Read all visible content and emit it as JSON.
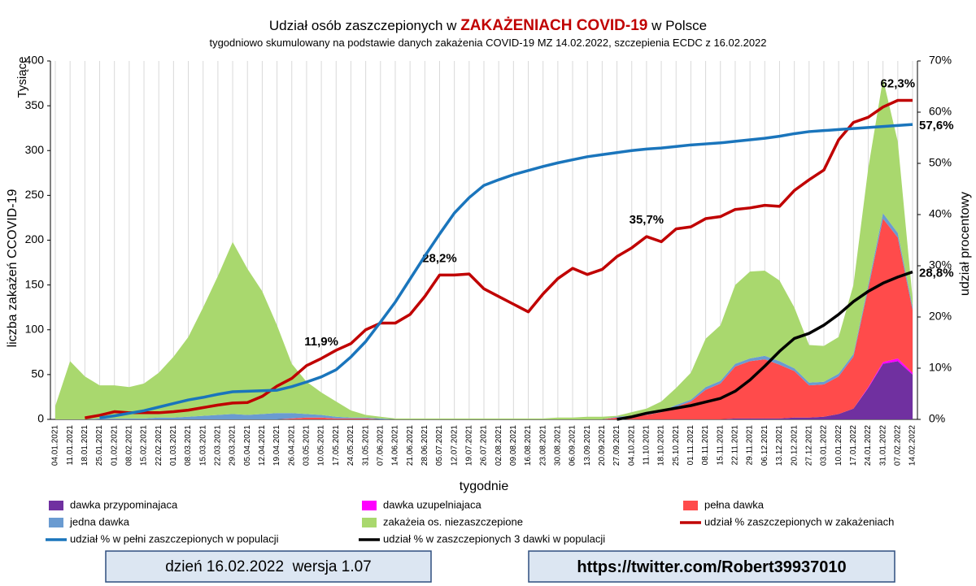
{
  "chart_data": {
    "type": "area",
    "title": [
      "Udział osób zaszczepionych w",
      "ZAKAŻENIACH COVID-19",
      "w Polsce"
    ],
    "subtitle": "tygodniowo skumulowany na podstawie danych zakażenia COVID-19 MZ 14.02.2022, szczepienia ECDC z 16.02.2022",
    "y_unit": "Tysiące",
    "y_label": "liczba zakażeń CCOVID-19",
    "y2_label": "udział procentowy",
    "x_label": "tygodnie",
    "categories": [
      "04.01.2021",
      "11.01.2021",
      "18.01.2021",
      "25.01.2021",
      "01.02.2021",
      "08.02.2021",
      "15.02.2021",
      "22.02.2021",
      "01.03.2021",
      "08.03.2021",
      "15.03.2021",
      "22.03.2021",
      "29.03.2021",
      "05.04.2021",
      "12.04.2021",
      "19.04.2021",
      "26.04.2021",
      "03.05.2021",
      "10.05.2021",
      "17.05.2021",
      "24.05.2021",
      "31.05.2021",
      "07.06.2021",
      "14.06.2021",
      "21.06.2021",
      "28.06.2021",
      "05.07.2021",
      "12.07.2021",
      "19.07.2021",
      "26.07.2021",
      "02.08.2021",
      "09.08.2021",
      "16.08.2021",
      "23.08.2021",
      "30.08.2021",
      "06.09.2021",
      "13.09.2021",
      "20.09.2021",
      "27.09.2021",
      "04.10.2021",
      "11.10.2021",
      "18.10.2021",
      "25.10.2021",
      "01.11.2021",
      "08.11.2021",
      "15.11.2021",
      "22.11.2021",
      "29.11.2021",
      "06.12.2021",
      "13.12.2021",
      "20.12.2021",
      "27.12.2021",
      "03.01.2022",
      "10.01.2022",
      "17.01.2022",
      "24.01.2022",
      "31.01.2022",
      "07.02.2022",
      "14.02.2022"
    ],
    "ylim": [
      0,
      400
    ],
    "yticks": [
      0,
      50,
      100,
      150,
      200,
      250,
      300,
      350,
      400
    ],
    "y2lim": [
      0,
      70
    ],
    "y2ticks": [
      {
        "value": 0,
        "label": "0%"
      },
      {
        "value": 10,
        "label": "10%"
      },
      {
        "value": 20,
        "label": "20%"
      },
      {
        "value": 30,
        "label": "30%"
      },
      {
        "value": 40,
        "label": "40%"
      },
      {
        "value": 50,
        "label": "50%"
      },
      {
        "value": 60,
        "label": "60%"
      },
      {
        "value": 70,
        "label": "70%"
      }
    ],
    "grid": "x",
    "series": [
      {
        "name": "dawka przypominajaca",
        "type": "area",
        "color": "#7030a0",
        "values": [
          0,
          0,
          0,
          0,
          0,
          0,
          0,
          0,
          0,
          0,
          0,
          0,
          0,
          0,
          0,
          0,
          0,
          0,
          0,
          0,
          0,
          0,
          0,
          0,
          0,
          0,
          0,
          0,
          0,
          0,
          0,
          0,
          0,
          0,
          0,
          0,
          0,
          0,
          0,
          0,
          0,
          0,
          0,
          0,
          0,
          0,
          1,
          1,
          1,
          1,
          2,
          2,
          3,
          6,
          12,
          35,
          62,
          65,
          50
        ]
      },
      {
        "name": "dawka uzupelniajaca",
        "type": "area",
        "color": "#ff00ff",
        "values": [
          0,
          0,
          0,
          0,
          0,
          0,
          0,
          0,
          0,
          0,
          0,
          0,
          0,
          0,
          0,
          0,
          0,
          0,
          0,
          0,
          0,
          0,
          0,
          0,
          0,
          0,
          0,
          0,
          0,
          0,
          0,
          0,
          0,
          0,
          0,
          0,
          0,
          0,
          0,
          0,
          0,
          0,
          0,
          0,
          0,
          0,
          0,
          0,
          0,
          0,
          0,
          0,
          0,
          0,
          0,
          1,
          2,
          3,
          2
        ]
      },
      {
        "name": "pełna dawka",
        "type": "area",
        "color": "#ff4b4b",
        "values": [
          0,
          0,
          0,
          0,
          0,
          0,
          0,
          0,
          0,
          0,
          0,
          0,
          0,
          0,
          0,
          0,
          1,
          2,
          2,
          1,
          1,
          1,
          0,
          0,
          0,
          0,
          0,
          0,
          0,
          0,
          0,
          0,
          0,
          0,
          0,
          0,
          0,
          0,
          2,
          3,
          5,
          8,
          14,
          20,
          33,
          40,
          58,
          64,
          66,
          60,
          52,
          36,
          36,
          42,
          58,
          110,
          160,
          135,
          70
        ]
      },
      {
        "name": "jedna dawka",
        "type": "area",
        "color": "#6a9bd1",
        "values": [
          0,
          0,
          0,
          1,
          1,
          1,
          1,
          2,
          2,
          3,
          4,
          5,
          6,
          5,
          6,
          7,
          6,
          4,
          3,
          2,
          1,
          1,
          1,
          0,
          0,
          0,
          0,
          0,
          0,
          0,
          0,
          0,
          0,
          0,
          0,
          0,
          0,
          0,
          1,
          1,
          1,
          1,
          2,
          2,
          3,
          3,
          3,
          3,
          4,
          4,
          3,
          3,
          3,
          3,
          3,
          4,
          6,
          5,
          4
        ]
      },
      {
        "name": "zakażeia os. niezaszczepione",
        "type": "area",
        "color": "#a9d86e",
        "values": [
          15,
          65,
          48,
          37,
          37,
          35,
          39,
          50,
          68,
          89,
          121,
          155,
          192,
          163,
          137,
          98,
          55,
          36,
          25,
          17,
          8,
          3,
          2,
          1,
          1,
          1,
          1,
          1,
          1,
          1,
          1,
          1,
          1,
          1,
          2,
          2,
          3,
          3,
          1,
          4,
          6,
          11,
          19,
          30,
          54,
          62,
          88,
          97,
          95,
          90,
          68,
          42,
          40,
          41,
          77,
          130,
          150,
          102,
          9
        ]
      },
      {
        "name": "udział % zaszczepionych w zakażeniach",
        "type": "line",
        "axis": "y2",
        "color": "#c00000",
        "values": [
          null,
          null,
          0.3,
          0.8,
          1.5,
          1.3,
          1.3,
          1.3,
          1.5,
          1.8,
          2.3,
          2.8,
          3.2,
          3.3,
          4.5,
          6.5,
          8.0,
          10.5,
          11.9,
          13.5,
          14.8,
          17.5,
          18.8,
          18.8,
          20.5,
          24.0,
          28.2,
          28.2,
          28.4,
          25.5,
          24.0,
          22.5,
          21.0,
          24.5,
          27.5,
          29.5,
          28.3,
          29.3,
          31.8,
          33.5,
          35.7,
          34.7,
          37.2,
          37.6,
          39.2,
          39.6,
          41.0,
          41.3,
          41.8,
          41.6,
          44.7,
          46.8,
          48.7,
          54.6,
          58.0,
          59.0,
          61.0,
          62.3,
          62.3
        ],
        "value_labels": [
          null,
          null,
          null,
          null,
          null,
          null,
          null,
          null,
          null,
          null,
          null,
          null,
          null,
          null,
          null,
          null,
          null,
          null,
          "11,9%",
          null,
          null,
          null,
          null,
          null,
          null,
          null,
          "28,2%",
          null,
          null,
          null,
          null,
          null,
          null,
          null,
          null,
          null,
          null,
          null,
          null,
          null,
          "35,7%",
          null,
          null,
          null,
          null,
          null,
          null,
          null,
          null,
          null,
          null,
          null,
          null,
          null,
          null,
          null,
          null,
          "62,3%",
          null
        ]
      },
      {
        "name": "udział % w pełni zaszczepionych w populacji",
        "type": "line",
        "axis": "y2",
        "color": "#1a75bc",
        "values": [
          null,
          null,
          null,
          0.3,
          0.7,
          1.2,
          1.7,
          2.4,
          3.1,
          3.8,
          4.3,
          4.9,
          5.4,
          5.5,
          5.6,
          5.7,
          6.4,
          7.3,
          8.3,
          9.7,
          12.2,
          15.2,
          19.0,
          22.9,
          27.4,
          31.9,
          36.2,
          40.3,
          43.3,
          45.7,
          46.8,
          47.8,
          48.6,
          49.4,
          50.1,
          50.7,
          51.3,
          51.7,
          52.1,
          52.5,
          52.8,
          53.0,
          53.3,
          53.6,
          53.8,
          54.0,
          54.3,
          54.6,
          54.9,
          55.3,
          55.8,
          56.2,
          56.4,
          56.6,
          56.8,
          57.0,
          57.2,
          57.4,
          57.6
        ],
        "value_labels": [
          null,
          null,
          null,
          null,
          null,
          null,
          null,
          null,
          null,
          null,
          null,
          null,
          null,
          null,
          null,
          null,
          null,
          null,
          null,
          null,
          null,
          null,
          null,
          null,
          null,
          null,
          null,
          null,
          null,
          null,
          null,
          null,
          null,
          null,
          null,
          null,
          null,
          null,
          null,
          null,
          null,
          null,
          null,
          null,
          null,
          null,
          null,
          null,
          null,
          null,
          null,
          null,
          null,
          null,
          null,
          null,
          null,
          null,
          "57,6%"
        ]
      },
      {
        "name": "udział % w zaszczepionych 3 dawki w populacji",
        "type": "line",
        "axis": "y2",
        "color": "#000000",
        "values": [
          null,
          null,
          null,
          null,
          null,
          null,
          null,
          null,
          null,
          null,
          null,
          null,
          null,
          null,
          null,
          null,
          null,
          null,
          null,
          null,
          null,
          null,
          null,
          null,
          null,
          null,
          null,
          null,
          null,
          null,
          null,
          null,
          null,
          null,
          null,
          null,
          null,
          null,
          0,
          0.5,
          1.2,
          1.7,
          2.2,
          2.7,
          3.4,
          4.1,
          5.5,
          7.7,
          10.4,
          13.3,
          15.8,
          16.8,
          18.4,
          20.5,
          23.0,
          25.0,
          26.6,
          27.8,
          28.8
        ],
        "value_labels": [
          null,
          null,
          null,
          null,
          null,
          null,
          null,
          null,
          null,
          null,
          null,
          null,
          null,
          null,
          null,
          null,
          null,
          null,
          null,
          null,
          null,
          null,
          null,
          null,
          null,
          null,
          null,
          null,
          null,
          null,
          null,
          null,
          null,
          null,
          null,
          null,
          null,
          null,
          null,
          null,
          null,
          null,
          null,
          null,
          null,
          null,
          null,
          null,
          null,
          null,
          null,
          null,
          null,
          null,
          null,
          null,
          null,
          null,
          "28,8%"
        ]
      }
    ]
  },
  "footer": {
    "left": "dzień 16.02.2022  wersja 1.07",
    "right": "https://twitter.com/Robert39937010"
  }
}
